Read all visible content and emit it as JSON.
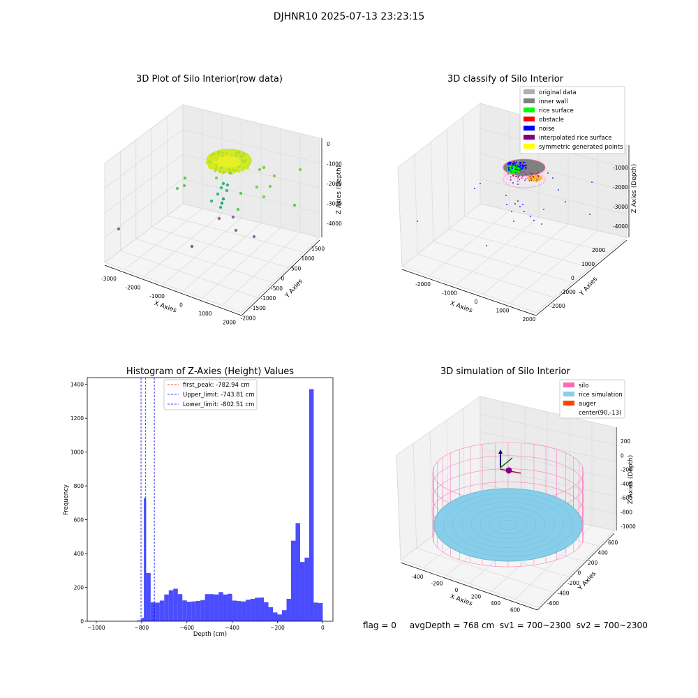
{
  "figure": {
    "title": "DJHNR10 2025-07-13 23:23:15",
    "footer_text": "flag = 0     avgDepth = 768 cm  sv1 = 700~2300  sv2 = 700~2300"
  },
  "chart_data": [
    {
      "type": "scatter",
      "subtype": "3d",
      "title": "3D Plot of Silo Interior(row data)",
      "xlabel": "X Axies",
      "ylabel": "Y Axies",
      "zlabel": "Z Axies (Depth)",
      "xticks": [
        "-3000",
        "-2000",
        "-1000",
        "0",
        "1000",
        "2000"
      ],
      "yticks": [
        "-2000",
        "-1500",
        "-1000",
        "-500",
        "0",
        "500",
        "1000",
        "1500"
      ],
      "zticks": [
        "0",
        "-1000",
        "-2000",
        "-3000",
        "-4000"
      ],
      "xlim": [
        -3200,
        2200
      ],
      "ylim": [
        -2100,
        1700
      ],
      "zlim": [
        -4500,
        200
      ],
      "colormap": "viridis",
      "grid": true
    },
    {
      "type": "scatter",
      "subtype": "3d",
      "title": "3D classify of Silo Interior",
      "xlabel": "X Axies",
      "ylabel": "Y Axies",
      "zlabel": "Z Axies (Depth)",
      "xticks": [
        "-2000",
        "-1000",
        "0",
        "1000",
        "2000"
      ],
      "yticks": [
        "-2000",
        "-1000",
        "0",
        "1000",
        "2000"
      ],
      "zticks": [
        "-1000",
        "-2000",
        "-3000",
        "-4000"
      ],
      "legend_position": "top-right",
      "legend": [
        {
          "label": "original data",
          "color": "#b0b0b0"
        },
        {
          "label": "inner wall",
          "color": "#808080"
        },
        {
          "label": "rice surface",
          "color": "#00ff00"
        },
        {
          "label": "obstacle",
          "color": "#ff0000"
        },
        {
          "label": "noise",
          "color": "#0000ff"
        },
        {
          "label": "interpolated rice surface",
          "color": "#800080"
        },
        {
          "label": "symmetric generated points",
          "color": "#ffff00"
        }
      ],
      "grid": true
    },
    {
      "type": "bar",
      "subtype": "histogram",
      "title": "Histogram of Z-Axies (Height) Values",
      "xlabel": "Depth (cm)",
      "ylabel": "Frequency",
      "xlim": [
        -1040,
        45
      ],
      "ylim": [
        0,
        1440
      ],
      "xticks": [
        -1000,
        -800,
        -600,
        -400,
        -200,
        0
      ],
      "yticks": [
        0,
        200,
        400,
        600,
        800,
        1000,
        1200,
        1400
      ],
      "bin_width": 20,
      "bar_color": "#0000ff",
      "bar_alpha": 0.7,
      "bins": [
        {
          "x0": -820,
          "count": 5
        },
        {
          "x0": -800,
          "count": 20
        },
        {
          "x0": -790,
          "count": 728
        },
        {
          "x0": -780,
          "count": 285
        },
        {
          "x0": -760,
          "count": 112
        },
        {
          "x0": -740,
          "count": 110
        },
        {
          "x0": -720,
          "count": 122
        },
        {
          "x0": -700,
          "count": 158
        },
        {
          "x0": -680,
          "count": 183
        },
        {
          "x0": -660,
          "count": 192
        },
        {
          "x0": -640,
          "count": 160
        },
        {
          "x0": -620,
          "count": 123
        },
        {
          "x0": -600,
          "count": 115
        },
        {
          "x0": -580,
          "count": 117
        },
        {
          "x0": -560,
          "count": 120
        },
        {
          "x0": -540,
          "count": 125
        },
        {
          "x0": -520,
          "count": 160
        },
        {
          "x0": -500,
          "count": 160
        },
        {
          "x0": -480,
          "count": 158
        },
        {
          "x0": -460,
          "count": 172
        },
        {
          "x0": -440,
          "count": 158
        },
        {
          "x0": -420,
          "count": 162
        },
        {
          "x0": -400,
          "count": 122
        },
        {
          "x0": -380,
          "count": 119
        },
        {
          "x0": -360,
          "count": 117
        },
        {
          "x0": -340,
          "count": 127
        },
        {
          "x0": -320,
          "count": 132
        },
        {
          "x0": -300,
          "count": 139
        },
        {
          "x0": -280,
          "count": 140
        },
        {
          "x0": -260,
          "count": 113
        },
        {
          "x0": -240,
          "count": 83
        },
        {
          "x0": -220,
          "count": 52
        },
        {
          "x0": -200,
          "count": 40
        },
        {
          "x0": -180,
          "count": 65
        },
        {
          "x0": -160,
          "count": 132
        },
        {
          "x0": -140,
          "count": 476
        },
        {
          "x0": -120,
          "count": 580
        },
        {
          "x0": -100,
          "count": 350
        },
        {
          "x0": -80,
          "count": 376
        },
        {
          "x0": -60,
          "count": 1372
        },
        {
          "x0": -40,
          "count": 110
        },
        {
          "x0": -20,
          "count": 107
        }
      ],
      "vlines": [
        {
          "label": "first_peak: -782.94 cm",
          "x": -782.94,
          "color": "#ff0000"
        },
        {
          "label": "Upper_limit: -743.81 cm",
          "x": -743.81,
          "color": "#0000ff"
        },
        {
          "label": "Lower_limit: -802.51 cm",
          "x": -802.51,
          "color": "#0000ff"
        }
      ],
      "legend_position": "top-center"
    },
    {
      "type": "surface",
      "subtype": "3d",
      "title": "3D simulation of Silo Interior",
      "xlabel": "X Axies",
      "ylabel": "Y Axies",
      "zlabel": "Z Axies (Depth)",
      "xticks": [
        "-400",
        "-200",
        "0",
        "200",
        "400",
        "600"
      ],
      "yticks": [
        "-600",
        "-400",
        "-200",
        "0",
        "200",
        "400",
        "600"
      ],
      "zticks": [
        "200",
        "0",
        "-200",
        "-400",
        "-600",
        "-800",
        "-1000"
      ],
      "legend_position": "top-right",
      "legend": [
        {
          "label": "silo",
          "color": "#ff69b4"
        },
        {
          "label": "rice simulation",
          "color": "#87ceeb"
        },
        {
          "label": "auger",
          "color": "#ff4500"
        },
        {
          "label": "center(90,-13)",
          "color": ""
        }
      ],
      "grid": true
    }
  ]
}
